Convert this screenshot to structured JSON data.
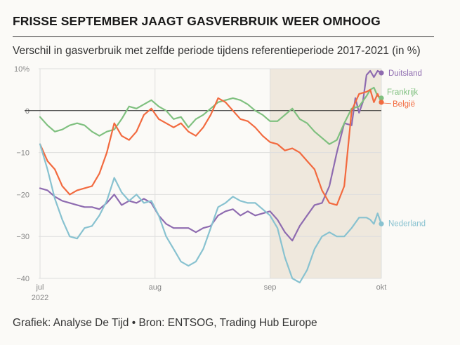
{
  "header": {
    "title": "FRISSE SEPTEMBER JAAGT GASVERBRUIK WEER OMHOOG",
    "subtitle": "Verschil in gasverbruik met zelfde periode tijdens referentieperiode 2017-2021 (in %)"
  },
  "footer": {
    "credit": "Grafiek: Analyse De Tijd • Bron: ENTSOG, Trading Hub Europe"
  },
  "chart_data": {
    "type": "line",
    "title": "FRISSE SEPTEMBER JAAGT GASVERBRUIK WEER OMHOOG",
    "subtitle": "Verschil in gasverbruik met zelfde periode tijdens referentieperiode 2017-2021 (in %)",
    "ylim": [
      -40,
      10
    ],
    "y_ticks": [
      10,
      0,
      -10,
      -20,
      -30,
      -40
    ],
    "y_tick_labels": [
      "10%",
      "0",
      "−10",
      "−20",
      "−30",
      "−40"
    ],
    "x_ticks": [
      {
        "label": "jul",
        "sublabel": "2022",
        "day": 0
      },
      {
        "label": "aug",
        "sublabel": "",
        "day": 31
      },
      {
        "label": "sep",
        "sublabel": "",
        "day": 62
      },
      {
        "label": "okt",
        "sublabel": "",
        "day": 92
      }
    ],
    "x_start": "2022-07-01",
    "x_end": "2022-10-01",
    "zero_line": true,
    "grid": true,
    "shaded_period": {
      "from_day": 62,
      "to_day": 92,
      "color": "#efe8dd"
    },
    "series": [
      {
        "name": "Duitsland",
        "color": "#8e6bb0",
        "days": [
          0,
          2,
          4,
          6,
          8,
          10,
          12,
          14,
          16,
          18,
          20,
          22,
          24,
          26,
          28,
          30,
          32,
          34,
          36,
          38,
          40,
          42,
          44,
          46,
          48,
          50,
          52,
          54,
          56,
          58,
          60,
          62,
          64,
          66,
          68,
          70,
          72,
          74,
          76,
          78,
          80,
          82,
          84,
          85,
          86,
          87,
          88,
          89,
          90,
          91,
          92
        ],
        "values": [
          -18.5,
          -19,
          -20.5,
          -21.5,
          -22,
          -22.5,
          -23,
          -23,
          -23.5,
          -22,
          -20,
          -22.5,
          -21.5,
          -22,
          -21,
          -22,
          -25,
          -27,
          -28,
          -28,
          -28,
          -29,
          -28,
          -27.5,
          -25,
          -24,
          -23.5,
          -25,
          -24,
          -25,
          -24.5,
          -24,
          -26,
          -29,
          -31,
          -27.5,
          -25,
          -22.5,
          -22,
          -18,
          -10,
          -3,
          -3.5,
          3,
          -0.5,
          2,
          8.5,
          9.5,
          8,
          9.5,
          9
        ]
      },
      {
        "name": "Frankrijk",
        "color": "#7fc07f",
        "days": [
          0,
          2,
          4,
          6,
          8,
          10,
          12,
          14,
          16,
          18,
          20,
          22,
          24,
          26,
          28,
          30,
          32,
          34,
          36,
          38,
          40,
          42,
          44,
          46,
          48,
          50,
          52,
          54,
          56,
          58,
          60,
          62,
          64,
          66,
          68,
          70,
          72,
          74,
          76,
          78,
          80,
          82,
          84,
          86,
          88,
          89,
          90,
          91,
          92
        ],
        "values": [
          -1.5,
          -3.5,
          -5,
          -4.5,
          -3.5,
          -3,
          -3.5,
          -5,
          -6,
          -5,
          -4.5,
          -2,
          1,
          0.5,
          1.5,
          2.5,
          1,
          0,
          -2,
          -1.5,
          -4,
          -2,
          -1,
          0.5,
          2,
          2.5,
          3,
          2.5,
          1.5,
          0,
          -1,
          -2.5,
          -2.5,
          -1,
          0.5,
          -2,
          -3,
          -5,
          -6.5,
          -8,
          -7,
          -3,
          0.5,
          1,
          3.5,
          5,
          5.5,
          3.5,
          3
        ]
      },
      {
        "name": "België",
        "color": "#f26a3f",
        "days": [
          0,
          2,
          4,
          6,
          8,
          10,
          12,
          14,
          16,
          18,
          20,
          22,
          24,
          26,
          28,
          30,
          32,
          34,
          36,
          38,
          40,
          42,
          44,
          46,
          48,
          50,
          52,
          54,
          56,
          58,
          60,
          62,
          64,
          66,
          68,
          70,
          72,
          74,
          76,
          78,
          80,
          82,
          84,
          86,
          88,
          89,
          90,
          91,
          92
        ],
        "values": [
          -8,
          -12,
          -14,
          -18,
          -20,
          -19,
          -18.5,
          -18,
          -15,
          -10,
          -3,
          -6,
          -7,
          -5,
          -1,
          0.5,
          -2,
          -3,
          -4,
          -3,
          -5,
          -6,
          -4,
          -1,
          3,
          2,
          0,
          -2,
          -2.5,
          -4,
          -6,
          -7.5,
          -8,
          -9.5,
          -9,
          -10,
          -12,
          -14,
          -19,
          -22,
          -22.5,
          -18,
          0,
          4,
          4.5,
          5,
          2,
          4,
          2
        ]
      },
      {
        "name": "Nederland",
        "color": "#88c2d0",
        "days": [
          0,
          2,
          4,
          6,
          8,
          10,
          12,
          14,
          16,
          18,
          20,
          22,
          24,
          26,
          28,
          30,
          32,
          34,
          36,
          38,
          40,
          42,
          44,
          46,
          48,
          50,
          52,
          54,
          56,
          58,
          60,
          62,
          64,
          66,
          68,
          70,
          72,
          74,
          76,
          78,
          80,
          82,
          84,
          86,
          88,
          89,
          90,
          91,
          92
        ],
        "values": [
          -8,
          -14,
          -21,
          -26,
          -30,
          -30.5,
          -28,
          -27.5,
          -25,
          -21.5,
          -16,
          -19.5,
          -21.5,
          -20,
          -22,
          -21.5,
          -25,
          -30,
          -33,
          -36,
          -37,
          -36,
          -33,
          -28,
          -23,
          -22,
          -20.5,
          -21.5,
          -22,
          -22,
          -23.5,
          -25,
          -28,
          -35,
          -40,
          -41,
          -38,
          -33,
          -30,
          -29,
          -30,
          -30,
          -28,
          -25.5,
          -25.5,
          -26,
          -27,
          -24.5,
          -27
        ]
      }
    ],
    "end_labels": [
      {
        "name": "Duitsland",
        "color": "#8e6bb0",
        "value": 9
      },
      {
        "name": "Frankrijk",
        "color": "#7fc07f",
        "value": 3
      },
      {
        "name": "België",
        "color": "#f26a3f",
        "value": 2
      },
      {
        "name": "Nederland",
        "color": "#88c2d0",
        "value": -27
      }
    ]
  }
}
